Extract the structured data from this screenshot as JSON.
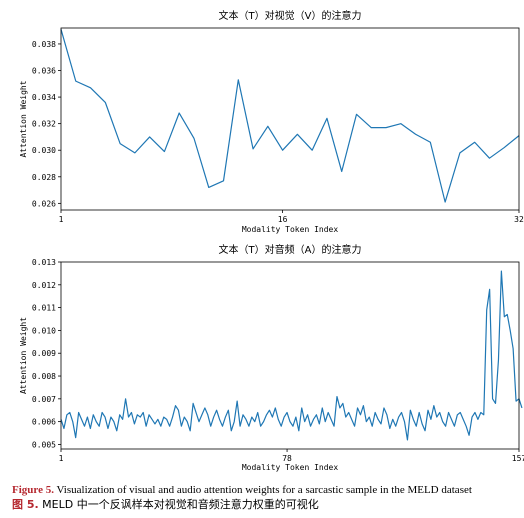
{
  "chart_data": [
    {
      "type": "line",
      "title": "文本（T）对视觉（V）的注意力",
      "xlabel": "Modality Token Index",
      "ylabel": "Attention Weight",
      "xlim": [
        1,
        32
      ],
      "ylim": [
        0.0255,
        0.0392
      ],
      "xticks": [
        "1",
        "16",
        "32"
      ],
      "yticks": [
        "0.026",
        "0.028",
        "0.030",
        "0.032",
        "0.034",
        "0.036",
        "0.038"
      ],
      "color": "#1f77b4",
      "x": [
        1,
        2,
        3,
        4,
        5,
        6,
        7,
        8,
        9,
        10,
        11,
        12,
        13,
        14,
        15,
        16,
        17,
        18,
        19,
        20,
        21,
        22,
        23,
        24,
        25,
        26,
        27,
        28,
        29,
        30,
        31,
        32
      ],
      "values": [
        0.0391,
        0.0352,
        0.0347,
        0.0336,
        0.0305,
        0.0298,
        0.031,
        0.0299,
        0.0328,
        0.0309,
        0.0272,
        0.0277,
        0.0353,
        0.0301,
        0.0318,
        0.03,
        0.0312,
        0.03,
        0.0324,
        0.0284,
        0.0327,
        0.0317,
        0.0317,
        0.032,
        0.0312,
        0.0306,
        0.0261,
        0.0298,
        0.0306,
        0.0294,
        0.0302,
        0.0311
      ]
    },
    {
      "type": "line",
      "title": "文本（T）对音频（A）的注意力",
      "xlabel": "Modality Token Index",
      "ylabel": "Attention Weight",
      "xlim": [
        1,
        157
      ],
      "ylim": [
        0.0048,
        0.013
      ],
      "xticks": [
        "1",
        "78",
        "157"
      ],
      "yticks": [
        "0.005",
        "0.006",
        "0.007",
        "0.008",
        "0.009",
        "0.010",
        "0.011",
        "0.012",
        "0.013"
      ],
      "color": "#1f77b4",
      "x_start": 1,
      "values": [
        0.0061,
        0.0057,
        0.0063,
        0.0064,
        0.006,
        0.0053,
        0.0064,
        0.0061,
        0.0058,
        0.0062,
        0.0057,
        0.0063,
        0.006,
        0.0058,
        0.0064,
        0.0062,
        0.0057,
        0.0062,
        0.006,
        0.0056,
        0.0063,
        0.0061,
        0.007,
        0.0062,
        0.0064,
        0.0059,
        0.0063,
        0.0062,
        0.0064,
        0.0058,
        0.0063,
        0.0061,
        0.0059,
        0.0061,
        0.0058,
        0.0062,
        0.0061,
        0.0058,
        0.0062,
        0.0067,
        0.0065,
        0.0058,
        0.0062,
        0.006,
        0.0056,
        0.0068,
        0.0064,
        0.006,
        0.0063,
        0.0066,
        0.0063,
        0.0058,
        0.0062,
        0.0065,
        0.0061,
        0.0058,
        0.0062,
        0.0065,
        0.0056,
        0.006,
        0.0069,
        0.0058,
        0.0063,
        0.0061,
        0.0058,
        0.0062,
        0.006,
        0.0064,
        0.0058,
        0.006,
        0.0063,
        0.0065,
        0.0062,
        0.0066,
        0.0061,
        0.0058,
        0.0062,
        0.0064,
        0.006,
        0.0058,
        0.0062,
        0.0056,
        0.0066,
        0.006,
        0.0063,
        0.0058,
        0.0061,
        0.0063,
        0.0059,
        0.0066,
        0.006,
        0.0064,
        0.0061,
        0.0058,
        0.0071,
        0.0066,
        0.0068,
        0.0062,
        0.0064,
        0.0061,
        0.0058,
        0.0066,
        0.0063,
        0.0067,
        0.006,
        0.0062,
        0.0058,
        0.0064,
        0.0061,
        0.0059,
        0.0066,
        0.0063,
        0.0057,
        0.0061,
        0.0058,
        0.0062,
        0.0064,
        0.006,
        0.0052,
        0.0065,
        0.0061,
        0.0058,
        0.0064,
        0.0059,
        0.0056,
        0.0065,
        0.0061,
        0.0067,
        0.0062,
        0.0064,
        0.006,
        0.0058,
        0.0064,
        0.0061,
        0.0058,
        0.0063,
        0.0064,
        0.0061,
        0.0058,
        0.0054,
        0.0062,
        0.0064,
        0.0061,
        0.0064,
        0.0063,
        0.0109,
        0.0118,
        0.007,
        0.0068,
        0.0087,
        0.0126,
        0.0106,
        0.0107,
        0.01,
        0.0092,
        0.0069,
        0.007,
        0.0066
      ]
    }
  ],
  "caption": {
    "en_label": "Figure 5.",
    "en_text": " Visualization of visual and audio attention weights for a sarcastic sample in the MELD dataset",
    "zh_label": "图 5.",
    "zh_text": " MELD 中一个反讽样本对视觉和音频注意力权重的可视化"
  }
}
